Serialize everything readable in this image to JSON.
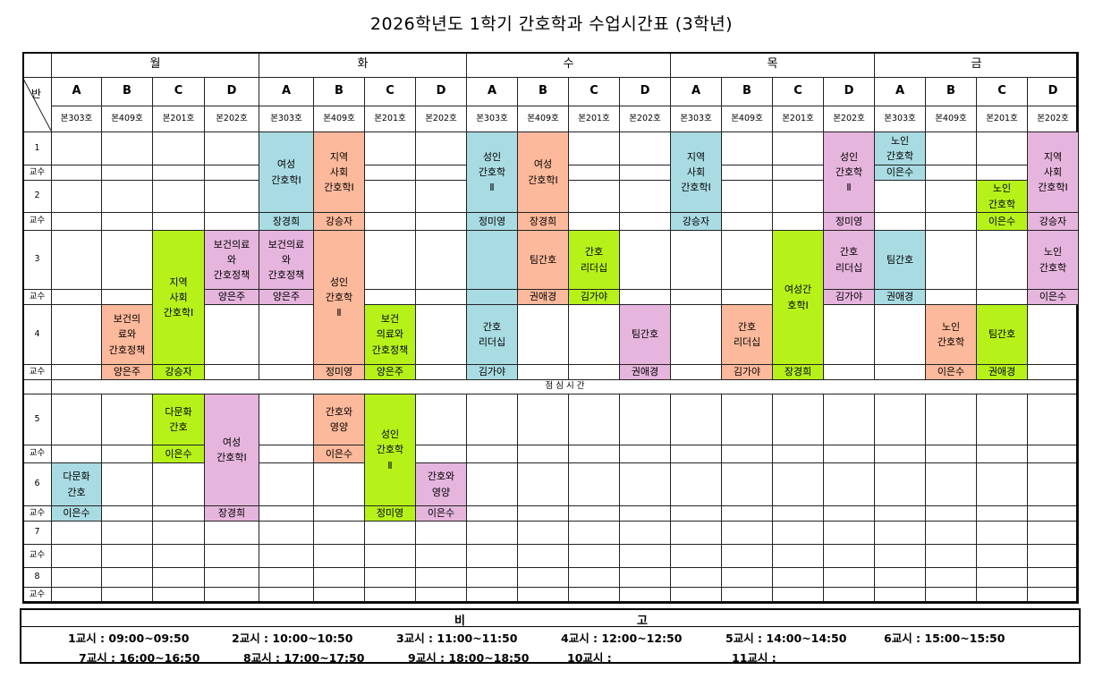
{
  "title": "2026학년도 1학기 간호학과 수업시간표 (3학년)",
  "header": {
    "ban": "반",
    "days": [
      "월",
      "화",
      "수",
      "목",
      "금"
    ],
    "classes": [
      "A",
      "B",
      "C",
      "D",
      "A",
      "B",
      "C",
      "D",
      "A",
      "B",
      "C",
      "D",
      "A",
      "B",
      "C",
      "D",
      "A",
      "B",
      "C",
      "D"
    ],
    "rooms": [
      "본303호",
      "본409호",
      "본201호",
      "본202호",
      "본303호",
      "본409호",
      "본201호",
      "본202호",
      "본303호",
      "본409호",
      "본201호",
      "본202호",
      "본303호",
      "본409호",
      "본201호",
      "본202호",
      "본303호",
      "본409호",
      "본201호",
      "본202호"
    ]
  },
  "row_labels": {
    "p1": "1",
    "p2": "2",
    "p3": "3",
    "p4": "4",
    "p5": "5",
    "p6": "6",
    "p7": "7",
    "p8": "8",
    "professor": "교수"
  },
  "lunch": "점 심 시 간",
  "colors": {
    "blue": "#a9dbe3",
    "salmon": "#fdb99b",
    "lime": "#b6f21a",
    "pink": "#e6b5de"
  },
  "blocks": [
    {
      "course": "여성\n간호학Ⅰ",
      "professor": "장경희",
      "color": "blue"
    },
    {
      "course": "지역\n사회\n간호학Ⅰ",
      "professor": "강승자",
      "color": "salmon"
    },
    {
      "course": "성인\n간호학\nⅡ",
      "professor": "정미영",
      "color": "blue"
    },
    {
      "course": "여성\n간호학Ⅰ",
      "professor": "장경희",
      "color": "salmon"
    },
    {
      "course": "지역\n사회\n간호학Ⅰ",
      "professor": "강승자",
      "color": "blue"
    },
    {
      "course": "성인\n간호학\nⅡ",
      "professor": "정미영",
      "color": "pink"
    },
    {
      "course": "노인\n간호학",
      "professor": "이은수",
      "color": "blue"
    },
    {
      "course": "노인\n간호학",
      "professor": "이은수",
      "color": "lime"
    },
    {
      "course": "지역\n사회\n간호학Ⅰ",
      "professor": "강승자",
      "color": "pink"
    },
    {
      "course": "지역\n사회\n간호학Ⅰ",
      "professor": "강승자",
      "color": "lime"
    },
    {
      "course": "보건의료\n와\n간호정책",
      "professor": "양은주",
      "color": "pink"
    },
    {
      "course": "보건의료\n와\n간호정책",
      "professor": "양은주",
      "color": "pink"
    },
    {
      "course": "성인\n간호학\nⅡ",
      "professor": "정미영",
      "color": "salmon"
    },
    {
      "course": "",
      "professor": "",
      "color": "blue"
    },
    {
      "course": "팀간호",
      "professor": "권애경",
      "color": "salmon"
    },
    {
      "course": "간호\n리더십",
      "professor": "김가야",
      "color": "lime"
    },
    {
      "course": "여성간\n호학Ⅰ",
      "professor": "장경희",
      "color": "lime"
    },
    {
      "course": "간호\n리더십",
      "professor": "김가야",
      "color": "pink"
    },
    {
      "course": "팀간호",
      "professor": "권애경",
      "color": "blue"
    },
    {
      "course": "노인\n간호학",
      "professor": "이은수",
      "color": "pink"
    },
    {
      "course": "보건의\n료와\n간호정책",
      "professor": "양은주",
      "color": "salmon"
    },
    {
      "course": "보건\n의료와\n간호정책",
      "professor": "양은주",
      "color": "lime"
    },
    {
      "course": "간호\n리더십",
      "professor": "김가야",
      "color": "blue"
    },
    {
      "course": "팀간호",
      "professor": "권애경",
      "color": "pink"
    },
    {
      "course": "간호\n리더십",
      "professor": "김가야",
      "color": "salmon"
    },
    {
      "course": "노인\n간호학",
      "professor": "이은수",
      "color": "salmon"
    },
    {
      "course": "팀간호",
      "professor": "권애경",
      "color": "lime"
    },
    {
      "course": "다문화\n간호",
      "professor": "이은수",
      "color": "lime"
    },
    {
      "course": "여성\n간호학Ⅰ",
      "professor": "장경희",
      "color": "pink"
    },
    {
      "course": "간호와\n영양",
      "professor": "이은수",
      "color": "salmon"
    },
    {
      "course": "성인\n간호학\nⅡ",
      "professor": "정미영",
      "color": "lime"
    },
    {
      "course": "다문화\n간호",
      "professor": "이은수",
      "color": "blue"
    },
    {
      "course": "간호와\n영양",
      "professor": "이은수",
      "color": "pink"
    }
  ],
  "notes": {
    "title_left": "비",
    "title_right": "고",
    "periods": [
      "1교시 : 09:00~09:50",
      "2교시 : 10:00~10:50",
      "3교시 : 11:00~11:50",
      "4교시 : 12:00~12:50",
      "5교시 : 14:00~14:50",
      "6교시 : 15:00~15:50",
      "7교시 : 16:00~16:50",
      "8교시 : 17:00~17:50",
      "9교시 : 18:00~18:50",
      "10교시 :",
      "11교시 :"
    ]
  }
}
